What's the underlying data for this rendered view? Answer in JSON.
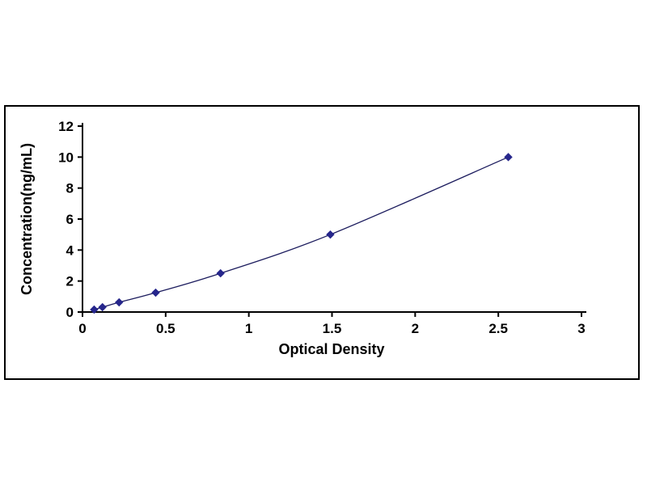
{
  "chart_data": {
    "type": "line",
    "title": "",
    "xlabel": "Optical Density",
    "ylabel": "Concentration(ng/mL)",
    "x": [
      0.07,
      0.12,
      0.22,
      0.44,
      0.83,
      1.49,
      2.56
    ],
    "y": [
      0.156,
      0.312,
      0.625,
      1.25,
      2.5,
      5,
      10
    ],
    "xlim": [
      0,
      3
    ],
    "ylim": [
      0,
      12
    ],
    "xticks": [
      0,
      0.5,
      1,
      1.5,
      2,
      2.5,
      3
    ],
    "xtick_labels": [
      "0",
      "0.5",
      "1",
      "1.5",
      "2",
      "2.5",
      "3"
    ],
    "yticks": [
      0,
      2,
      4,
      6,
      8,
      10,
      12
    ],
    "ytick_labels": [
      "0",
      "2",
      "4",
      "6",
      "8",
      "10",
      "12"
    ],
    "grid": false,
    "legend": "none",
    "marker": "diamond",
    "marker_color": "#26268c",
    "line_color": "#1c1c5e",
    "axis_color": "#000000"
  }
}
